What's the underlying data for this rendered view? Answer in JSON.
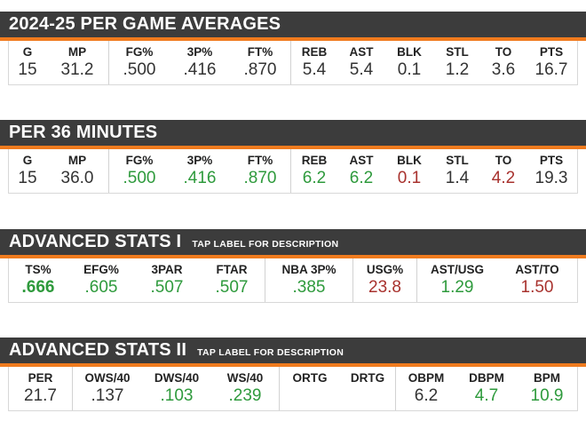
{
  "colors": {
    "header_bg": "#3c3c3c",
    "accent": "#f07b1e",
    "good": "#2e9a3c",
    "bad": "#a8322e"
  },
  "per_game": {
    "title": "2024-25 PER GAME AVERAGES",
    "stats": [
      {
        "label": "G",
        "value": "15"
      },
      {
        "label": "MP",
        "value": "31.2"
      },
      {
        "label": "FG%",
        "value": ".500"
      },
      {
        "label": "3P%",
        "value": ".416"
      },
      {
        "label": "FT%",
        "value": ".870"
      },
      {
        "label": "REB",
        "value": "5.4"
      },
      {
        "label": "AST",
        "value": "5.4"
      },
      {
        "label": "BLK",
        "value": "0.1"
      },
      {
        "label": "STL",
        "value": "1.2"
      },
      {
        "label": "TO",
        "value": "3.6"
      },
      {
        "label": "PTS",
        "value": "16.7"
      }
    ]
  },
  "per36": {
    "title": "PER 36 MINUTES",
    "stats": [
      {
        "label": "G",
        "value": "15",
        "color": "neutral"
      },
      {
        "label": "MP",
        "value": "36.0",
        "color": "neutral"
      },
      {
        "label": "FG%",
        "value": ".500",
        "color": "green"
      },
      {
        "label": "3P%",
        "value": ".416",
        "color": "green"
      },
      {
        "label": "FT%",
        "value": ".870",
        "color": "green"
      },
      {
        "label": "REB",
        "value": "6.2",
        "color": "green"
      },
      {
        "label": "AST",
        "value": "6.2",
        "color": "green"
      },
      {
        "label": "BLK",
        "value": "0.1",
        "color": "red"
      },
      {
        "label": "STL",
        "value": "1.4",
        "color": "neutral"
      },
      {
        "label": "TO",
        "value": "4.2",
        "color": "red"
      },
      {
        "label": "PTS",
        "value": "19.3",
        "color": "neutral"
      }
    ]
  },
  "advanced1": {
    "title": "ADVANCED STATS I",
    "subtitle": "TAP LABEL FOR DESCRIPTION",
    "stats": [
      {
        "label": "TS%",
        "value": ".666",
        "color": "green"
      },
      {
        "label": "EFG%",
        "value": ".605",
        "color": "green"
      },
      {
        "label": "3PAR",
        "value": ".507",
        "color": "green"
      },
      {
        "label": "FTAR",
        "value": ".507",
        "color": "green"
      },
      {
        "label": "NBA 3P%",
        "value": ".385",
        "color": "green"
      },
      {
        "label": "USG%",
        "value": "23.8",
        "color": "red"
      },
      {
        "label": "AST/USG",
        "value": "1.29",
        "color": "green"
      },
      {
        "label": "AST/TO",
        "value": "1.50",
        "color": "red"
      }
    ]
  },
  "advanced2": {
    "title": "ADVANCED STATS II",
    "subtitle": "TAP LABEL FOR DESCRIPTION",
    "stats": [
      {
        "label": "PER",
        "value": "21.7",
        "color": "neutral"
      },
      {
        "label": "OWS/40",
        "value": ".137",
        "color": "neutral"
      },
      {
        "label": "DWS/40",
        "value": ".103",
        "color": "green"
      },
      {
        "label": "WS/40",
        "value": ".239",
        "color": "green"
      },
      {
        "label": "ORTG",
        "value": "",
        "color": "neutral"
      },
      {
        "label": "DRTG",
        "value": "",
        "color": "neutral"
      },
      {
        "label": "OBPM",
        "value": "6.2",
        "color": "neutral"
      },
      {
        "label": "DBPM",
        "value": "4.7",
        "color": "green"
      },
      {
        "label": "BPM",
        "value": "10.9",
        "color": "green"
      }
    ]
  }
}
